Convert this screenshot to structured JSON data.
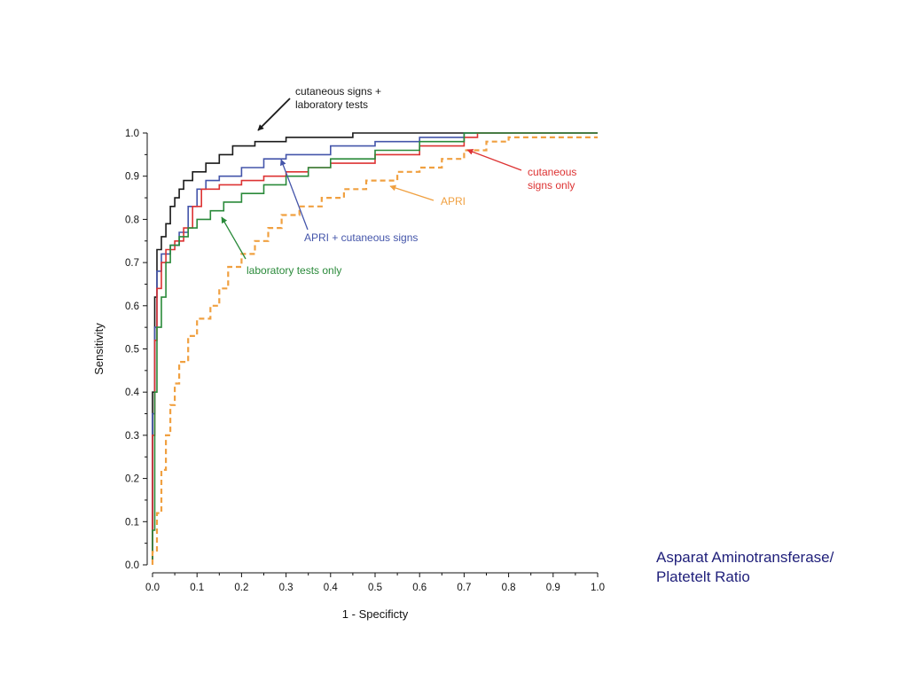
{
  "chart_data": {
    "type": "line",
    "xlabel": "1 - Specificty",
    "ylabel": "Sensitivity",
    "xlim": [
      0,
      1
    ],
    "ylim": [
      0,
      1
    ],
    "x_ticks": [
      "0.0",
      "0.1",
      "0.2",
      "0.3",
      "0.4",
      "0.5",
      "0.6",
      "0.7",
      "0.8",
      "0.9",
      "1.0"
    ],
    "y_ticks": [
      "0.0",
      "0.1",
      "0.2",
      "0.3",
      "0.4",
      "0.5",
      "0.6",
      "0.7",
      "0.8",
      "0.9",
      "1.0"
    ],
    "grid": false,
    "series": [
      {
        "name": "cutaneous signs + laboratory tests",
        "color": "#1a1a1a",
        "style": "solid",
        "points": [
          [
            0,
            0
          ],
          [
            0,
            0.4
          ],
          [
            0.005,
            0.62
          ],
          [
            0.01,
            0.73
          ],
          [
            0.02,
            0.76
          ],
          [
            0.03,
            0.79
          ],
          [
            0.04,
            0.83
          ],
          [
            0.05,
            0.85
          ],
          [
            0.06,
            0.87
          ],
          [
            0.07,
            0.89
          ],
          [
            0.09,
            0.91
          ],
          [
            0.12,
            0.93
          ],
          [
            0.15,
            0.95
          ],
          [
            0.18,
            0.97
          ],
          [
            0.23,
            0.98
          ],
          [
            0.3,
            0.99
          ],
          [
            0.45,
            1.0
          ],
          [
            1.0,
            1.0
          ]
        ]
      },
      {
        "name": "APRI + cutaneous signs",
        "color": "#4455aa",
        "style": "solid",
        "points": [
          [
            0,
            0
          ],
          [
            0,
            0.35
          ],
          [
            0.005,
            0.55
          ],
          [
            0.01,
            0.68
          ],
          [
            0.02,
            0.72
          ],
          [
            0.04,
            0.74
          ],
          [
            0.06,
            0.77
          ],
          [
            0.08,
            0.83
          ],
          [
            0.1,
            0.87
          ],
          [
            0.12,
            0.89
          ],
          [
            0.15,
            0.9
          ],
          [
            0.2,
            0.92
          ],
          [
            0.25,
            0.94
          ],
          [
            0.3,
            0.95
          ],
          [
            0.4,
            0.97
          ],
          [
            0.5,
            0.98
          ],
          [
            0.6,
            0.99
          ],
          [
            0.7,
            1.0
          ],
          [
            1.0,
            1.0
          ]
        ]
      },
      {
        "name": "cutaneous signs only",
        "color": "#dd3333",
        "style": "solid",
        "points": [
          [
            0,
            0
          ],
          [
            0,
            0.3
          ],
          [
            0.005,
            0.52
          ],
          [
            0.01,
            0.64
          ],
          [
            0.02,
            0.7
          ],
          [
            0.03,
            0.73
          ],
          [
            0.05,
            0.75
          ],
          [
            0.07,
            0.78
          ],
          [
            0.09,
            0.83
          ],
          [
            0.11,
            0.87
          ],
          [
            0.15,
            0.88
          ],
          [
            0.2,
            0.89
          ],
          [
            0.25,
            0.9
          ],
          [
            0.3,
            0.91
          ],
          [
            0.35,
            0.92
          ],
          [
            0.4,
            0.93
          ],
          [
            0.5,
            0.95
          ],
          [
            0.6,
            0.97
          ],
          [
            0.7,
            0.99
          ],
          [
            0.73,
            1.0
          ],
          [
            1.0,
            1.0
          ]
        ]
      },
      {
        "name": "laboratory tests only",
        "color": "#2a8a3a",
        "style": "solid",
        "points": [
          [
            0,
            0
          ],
          [
            0,
            0.08
          ],
          [
            0.005,
            0.4
          ],
          [
            0.01,
            0.55
          ],
          [
            0.02,
            0.62
          ],
          [
            0.03,
            0.7
          ],
          [
            0.04,
            0.74
          ],
          [
            0.06,
            0.76
          ],
          [
            0.08,
            0.78
          ],
          [
            0.1,
            0.8
          ],
          [
            0.13,
            0.82
          ],
          [
            0.16,
            0.84
          ],
          [
            0.2,
            0.86
          ],
          [
            0.25,
            0.88
          ],
          [
            0.3,
            0.9
          ],
          [
            0.35,
            0.92
          ],
          [
            0.4,
            0.94
          ],
          [
            0.5,
            0.96
          ],
          [
            0.6,
            0.98
          ],
          [
            0.7,
            1.0
          ],
          [
            1.0,
            1.0
          ]
        ]
      },
      {
        "name": "APRI",
        "color": "#f0a040",
        "style": "dashed",
        "points": [
          [
            0,
            0
          ],
          [
            0,
            0.03
          ],
          [
            0.01,
            0.12
          ],
          [
            0.02,
            0.22
          ],
          [
            0.03,
            0.3
          ],
          [
            0.04,
            0.37
          ],
          [
            0.05,
            0.42
          ],
          [
            0.06,
            0.47
          ],
          [
            0.08,
            0.53
          ],
          [
            0.1,
            0.57
          ],
          [
            0.13,
            0.6
          ],
          [
            0.15,
            0.64
          ],
          [
            0.17,
            0.69
          ],
          [
            0.2,
            0.72
          ],
          [
            0.23,
            0.75
          ],
          [
            0.26,
            0.78
          ],
          [
            0.29,
            0.81
          ],
          [
            0.33,
            0.83
          ],
          [
            0.38,
            0.85
          ],
          [
            0.43,
            0.87
          ],
          [
            0.48,
            0.89
          ],
          [
            0.55,
            0.91
          ],
          [
            0.6,
            0.92
          ],
          [
            0.65,
            0.94
          ],
          [
            0.7,
            0.96
          ],
          [
            0.75,
            0.98
          ],
          [
            0.8,
            0.99
          ],
          [
            0.9,
            0.99
          ],
          [
            1.0,
            0.99
          ]
        ]
      }
    ],
    "annotations": [
      {
        "lines": [
          "cutaneous signs +",
          "laboratory tests"
        ],
        "color": "#1a1a1a",
        "series": "cutaneous signs + laboratory tests"
      },
      {
        "lines": [
          "APRI + cutaneous signs"
        ],
        "color": "#4455aa",
        "series": "APRI + cutaneous signs"
      },
      {
        "lines": [
          "cutaneous",
          "signs only"
        ],
        "color": "#dd3333",
        "series": "cutaneous signs only"
      },
      {
        "lines": [
          "laboratory tests only"
        ],
        "color": "#2a8a3a",
        "series": "laboratory tests only"
      },
      {
        "lines": [
          "APRI"
        ],
        "color": "#f0a040",
        "series": "APRI"
      }
    ]
  },
  "caption": {
    "line1": "Asparat Aminotransferase/",
    "line2": "Platetelt Ratio"
  }
}
